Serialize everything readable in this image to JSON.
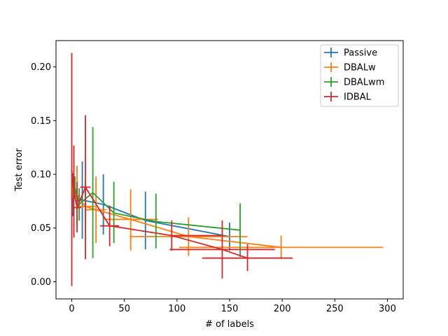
{
  "chart_data": {
    "type": "line",
    "xlabel": "# of labels",
    "ylabel": "Test error",
    "xlim": [
      -15,
      315
    ],
    "ylim": [
      -0.016,
      0.2245
    ],
    "xticks": [
      0,
      50,
      100,
      150,
      200,
      250,
      300
    ],
    "xtick_labels": [
      "0",
      "50",
      "100",
      "150",
      "200",
      "250",
      "300"
    ],
    "yticks": [
      0.0,
      0.05,
      0.1,
      0.15,
      0.2
    ],
    "ytick_labels": [
      "0.00",
      "0.05",
      "0.10",
      "0.15",
      "0.20"
    ],
    "grid": false,
    "legend_position": "top-right",
    "series": [
      {
        "name": "Passive",
        "color": "#1f77b4",
        "points": [
          {
            "x": 1,
            "y": 0.081,
            "ylo": 0.061,
            "yhi": 0.101
          },
          {
            "x": 10,
            "y": 0.076,
            "ylo": 0.04,
            "yhi": 0.112
          },
          {
            "x": 30,
            "y": 0.072,
            "ylo": 0.044,
            "yhi": 0.1
          },
          {
            "x": 70,
            "y": 0.057,
            "ylo": 0.03,
            "yhi": 0.084
          },
          {
            "x": 150,
            "y": 0.042,
            "ylo": 0.029,
            "yhi": 0.055
          }
        ]
      },
      {
        "name": "DBALw",
        "color": "#ff7f0e",
        "points": [
          {
            "x": 0.5,
            "y": 0.088,
            "ylo": 0.078,
            "yhi": 0.098,
            "xlo": 0,
            "xhi": 1
          },
          {
            "x": 5,
            "y": 0.08,
            "ylo": 0.052,
            "yhi": 0.108,
            "xlo": 2,
            "xhi": 8
          },
          {
            "x": 13,
            "y": 0.07,
            "ylo": 0.046,
            "yhi": 0.094,
            "xlo": 6,
            "xhi": 22
          },
          {
            "x": 23,
            "y": 0.067,
            "ylo": 0.036,
            "yhi": 0.098,
            "xlo": 13,
            "xhi": 33
          },
          {
            "x": 56,
            "y": 0.058,
            "ylo": 0.029,
            "yhi": 0.086,
            "xlo": 30,
            "xhi": 82
          },
          {
            "x": 111,
            "y": 0.042,
            "ylo": 0.024,
            "yhi": 0.06,
            "xlo": 55,
            "xhi": 167
          },
          {
            "x": 199,
            "y": 0.032,
            "ylo": 0.021,
            "yhi": 0.043,
            "xlo": 102,
            "xhi": 296
          }
        ]
      },
      {
        "name": "DBALwm",
        "color": "#2ca02c",
        "points": [
          {
            "x": 3,
            "y": 0.088,
            "ylo": 0.078,
            "yhi": 0.098
          },
          {
            "x": 7,
            "y": 0.072,
            "ylo": 0.057,
            "yhi": 0.087
          },
          {
            "x": 20,
            "y": 0.083,
            "ylo": 0.022,
            "yhi": 0.144
          },
          {
            "x": 40,
            "y": 0.064,
            "ylo": 0.036,
            "yhi": 0.093
          },
          {
            "x": 80,
            "y": 0.056,
            "ylo": 0.031,
            "yhi": 0.082
          },
          {
            "x": 160,
            "y": 0.048,
            "ylo": 0.023,
            "yhi": 0.073
          }
        ]
      },
      {
        "name": "IDBAL",
        "color": "#d62728",
        "points": [
          {
            "x": 0,
            "y": 0.104,
            "ylo": -0.004,
            "yhi": 0.213,
            "xlo": -0.5,
            "xhi": 0.5
          },
          {
            "x": 2,
            "y": 0.084,
            "ylo": 0.041,
            "yhi": 0.127,
            "xlo": 1.5,
            "xhi": 2.5
          },
          {
            "x": 5,
            "y": 0.069,
            "ylo": 0.046,
            "yhi": 0.093,
            "xlo": 1,
            "xhi": 9
          },
          {
            "x": 13,
            "y": 0.088,
            "ylo": 0.021,
            "yhi": 0.155,
            "xlo": 8,
            "xhi": 18
          },
          {
            "x": 36,
            "y": 0.052,
            "ylo": 0.033,
            "yhi": 0.071,
            "xlo": 27,
            "xhi": 45
          },
          {
            "x": 95,
            "y": 0.043,
            "ylo": 0.029,
            "yhi": 0.057,
            "xlo": 95,
            "xhi": 142
          },
          {
            "x": 143,
            "y": 0.03,
            "ylo": 0.003,
            "yhi": 0.057,
            "xlo": 93,
            "xhi": 193
          },
          {
            "x": 167,
            "y": 0.022,
            "ylo": 0.01,
            "yhi": 0.035,
            "xlo": 124,
            "xhi": 210
          }
        ]
      }
    ]
  }
}
